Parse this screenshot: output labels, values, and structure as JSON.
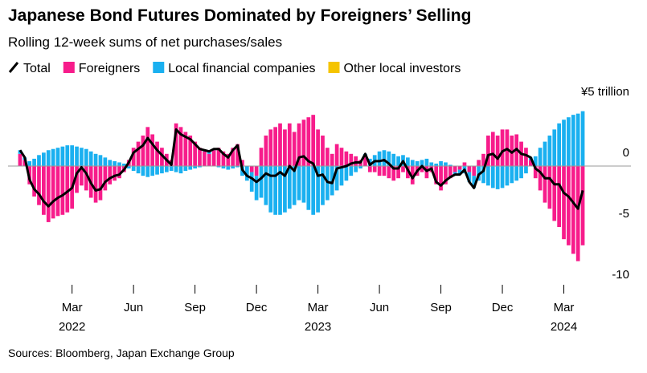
{
  "chart_data": {
    "type": "stacked_bar_line",
    "title": "Japanese Bond Futures Dominated by Foreigners’ Selling",
    "subtitle": "Rolling 12-week sums of net purchases/sales",
    "source": "Sources: Bloomberg, Japan Exchange Group",
    "categories": [
      null,
      null,
      null,
      null,
      null,
      null,
      null,
      null,
      null,
      null,
      null,
      null,
      null,
      null,
      null,
      null,
      null,
      null,
      null,
      null,
      null,
      null,
      null,
      null,
      null,
      null,
      null,
      null,
      null,
      null,
      null,
      null,
      null,
      null,
      null,
      null,
      null,
      null,
      null,
      null,
      null,
      null,
      null,
      null,
      null,
      null,
      null,
      null,
      null,
      null,
      null,
      null,
      null,
      null,
      null,
      null,
      null,
      null,
      null,
      null,
      null,
      null,
      null,
      null,
      null,
      null,
      null,
      null,
      null,
      null,
      null,
      null,
      null,
      null,
      null,
      null,
      null,
      null,
      null,
      null,
      null,
      null,
      null,
      null,
      null,
      null,
      null,
      null,
      null,
      null,
      null,
      null,
      null,
      null,
      null,
      null,
      null,
      null,
      null,
      null,
      null,
      null,
      null,
      null,
      null,
      null,
      null,
      null,
      null,
      null,
      null,
      null,
      null,
      null,
      null,
      null,
      null,
      null,
      null,
      null
    ],
    "xticks": [
      {
        "value": 11,
        "label": "Mar"
      },
      {
        "value": 24,
        "label": "Jun"
      },
      {
        "value": 37,
        "label": "Sep"
      },
      {
        "value": 50,
        "label": "Dec"
      },
      {
        "value": 63,
        "label": "Mar"
      },
      {
        "value": 76,
        "label": "Jun"
      },
      {
        "value": 89,
        "label": "Sep"
      },
      {
        "value": 102,
        "label": "Dec"
      },
      {
        "value": 115,
        "label": "Mar"
      }
    ],
    "years": [
      {
        "value": 11,
        "label": "2022"
      },
      {
        "value": 63,
        "label": "2023"
      },
      {
        "value": 115,
        "label": "2024"
      }
    ],
    "ylim": [
      -10,
      5
    ],
    "yticks": [
      {
        "value": 5,
        "label": "¥5 trillion"
      },
      0,
      -5,
      -10
    ],
    "series": [
      {
        "name": "Foreigners",
        "color": "#f71c8b",
        "values": [
          1.0,
          0.5,
          -1.5,
          -2.5,
          -3.2,
          -4.0,
          -4.6,
          -4.3,
          -4.1,
          -4.0,
          -3.8,
          -3.5,
          -2.2,
          -1.6,
          -2.0,
          -2.6,
          -3.0,
          -2.8,
          -2.0,
          -1.5,
          -1.2,
          -1.0,
          -0.5,
          0.5,
          1.5,
          2.0,
          2.5,
          3.2,
          2.6,
          2.0,
          1.5,
          1.0,
          0.5,
          3.5,
          3.2,
          2.8,
          2.5,
          2.0,
          1.5,
          1.2,
          1.0,
          1.3,
          1.5,
          1.2,
          1.0,
          1.5,
          1.8,
          0.5,
          0.0,
          -0.5,
          -0.8,
          1.5,
          2.5,
          3.0,
          3.2,
          3.5,
          3.0,
          3.5,
          2.8,
          3.5,
          3.8,
          4.0,
          4.2,
          3.0,
          2.5,
          1.5,
          1.0,
          1.8,
          1.5,
          1.2,
          1.0,
          0.8,
          0.5,
          0.8,
          -0.5,
          -0.5,
          -0.8,
          -0.8,
          -1.0,
          -1.2,
          -1.0,
          -0.5,
          -1.0,
          -1.5,
          -0.8,
          -0.5,
          -1.0,
          -0.5,
          -1.5,
          -2.0,
          -1.5,
          -1.0,
          -0.5,
          -0.3,
          0.3,
          -0.5,
          -0.8,
          0.5,
          1.0,
          2.5,
          2.8,
          2.5,
          3.0,
          3.0,
          2.5,
          2.6,
          2.0,
          1.5,
          0.5,
          -1.0,
          -2.0,
          -3.0,
          -3.5,
          -4.5,
          -5.0,
          -6.0,
          -6.5,
          -7.2,
          -7.8,
          -6.5
        ]
      },
      {
        "name": "Local financial companies",
        "color": "#1ab0f0",
        "values": [
          0.3,
          0.2,
          0.4,
          0.6,
          0.9,
          1.1,
          1.3,
          1.4,
          1.5,
          1.6,
          1.7,
          1.7,
          1.6,
          1.5,
          1.4,
          1.2,
          1.0,
          0.9,
          0.7,
          0.5,
          0.4,
          0.3,
          0.2,
          -0.2,
          -0.4,
          -0.6,
          -0.8,
          -0.9,
          -0.8,
          -0.7,
          -0.6,
          -0.5,
          -0.4,
          -0.5,
          -0.6,
          -0.4,
          -0.3,
          -0.2,
          -0.1,
          0.1,
          0.2,
          0.1,
          -0.1,
          -0.2,
          -0.3,
          -0.2,
          -0.1,
          -0.8,
          -1.2,
          -1.6,
          -2.0,
          -2.6,
          -3.2,
          -3.8,
          -4.0,
          -4.0,
          -3.8,
          -3.5,
          -3.2,
          -2.8,
          -3.0,
          -3.6,
          -4.0,
          -3.8,
          -3.2,
          -2.8,
          -2.4,
          -2.0,
          -1.6,
          -1.2,
          -0.8,
          -0.5,
          -0.2,
          0.2,
          0.6,
          0.9,
          1.2,
          1.3,
          1.2,
          1.0,
          0.8,
          0.9,
          0.7,
          0.5,
          0.4,
          0.5,
          0.6,
          0.3,
          0.2,
          0.4,
          0.3,
          0.1,
          -0.2,
          -0.4,
          -0.6,
          -0.8,
          -1.0,
          -1.2,
          -1.4,
          -1.6,
          -1.8,
          -1.9,
          -1.8,
          -1.6,
          -1.4,
          -1.2,
          -1.0,
          -0.6,
          0.2,
          0.8,
          1.5,
          2.0,
          2.5,
          3.0,
          3.5,
          3.8,
          4.0,
          4.2,
          4.3,
          4.5
        ]
      },
      {
        "name": "Other local investors",
        "color": "#f5c400",
        "values": [
          0,
          0,
          0,
          0,
          0,
          0,
          0,
          0,
          0,
          0,
          0,
          0,
          0,
          0,
          0,
          0,
          0,
          0,
          0,
          0,
          0,
          0,
          0,
          0,
          0,
          0,
          0,
          0,
          0,
          0,
          0,
          0,
          0,
          0,
          0,
          0,
          0,
          0,
          0,
          0,
          0,
          0,
          0,
          0,
          0,
          0,
          0,
          0,
          0,
          0,
          0,
          0,
          0,
          0,
          0,
          0,
          0,
          0,
          0,
          0,
          0,
          0,
          0,
          0,
          0,
          0,
          0,
          0,
          0,
          0,
          0,
          0,
          0,
          0,
          0,
          0,
          0,
          0,
          0,
          0,
          0,
          0,
          0,
          0,
          0,
          0,
          0,
          0,
          0,
          0,
          0,
          0,
          0,
          0,
          0,
          0,
          0,
          0,
          0,
          0,
          0,
          0,
          0,
          0,
          0,
          0,
          0,
          0,
          0,
          0,
          0,
          0,
          0,
          0,
          0,
          0,
          0,
          0,
          0,
          0
        ]
      },
      {
        "name": "Total",
        "color": "#000000",
        "kind": "line",
        "values": [
          1.3,
          0.7,
          -1.1,
          -1.9,
          -2.3,
          -2.9,
          -3.3,
          -2.9,
          -2.6,
          -2.4,
          -2.1,
          -1.8,
          -0.6,
          -0.1,
          -0.6,
          -1.4,
          -2.0,
          -1.9,
          -1.3,
          -1.0,
          -0.8,
          -0.7,
          -0.3,
          0.3,
          1.1,
          1.4,
          1.7,
          2.3,
          1.8,
          1.3,
          0.9,
          0.5,
          0.1,
          3.0,
          2.6,
          2.4,
          2.2,
          1.8,
          1.4,
          1.3,
          1.2,
          1.4,
          1.4,
          1.0,
          0.7,
          1.3,
          1.7,
          -0.3,
          -0.8,
          -1.0,
          -1.3,
          -1.0,
          -0.6,
          -0.8,
          -0.8,
          -0.5,
          -0.8,
          0.0,
          -0.4,
          0.7,
          0.8,
          0.4,
          0.2,
          -0.8,
          -0.7,
          -1.3,
          -1.4,
          -0.2,
          -0.1,
          0.0,
          0.2,
          0.3,
          0.3,
          1.0,
          0.1,
          0.4,
          0.4,
          0.5,
          0.2,
          -0.2,
          -0.2,
          0.4,
          -0.3,
          -1.0,
          -0.4,
          0.0,
          -0.4,
          -0.2,
          -1.3,
          -1.6,
          -1.2,
          -0.9,
          -0.7,
          -0.7,
          -0.3,
          -1.3,
          -1.8,
          -0.7,
          -0.4,
          0.9,
          1.0,
          0.6,
          1.2,
          1.4,
          1.1,
          1.4,
          1.0,
          0.9,
          0.7,
          -0.2,
          -0.5,
          -1.0,
          -1.0,
          -1.5,
          -1.5,
          -2.2,
          -2.5,
          -3.0,
          -3.5,
          -2.0
        ]
      }
    ]
  }
}
